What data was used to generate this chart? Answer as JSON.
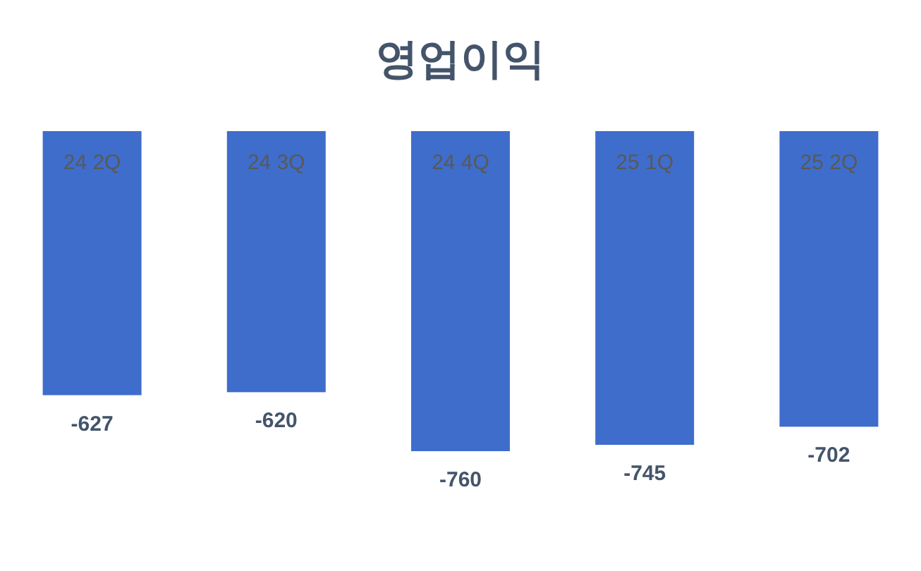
{
  "chart_data": {
    "type": "bar",
    "title": "영업이익",
    "categories": [
      "24 2Q",
      "24 3Q",
      "24 4Q",
      "25 1Q",
      "25 2Q"
    ],
    "values": [
      -627,
      -620,
      -760,
      -745,
      -702
    ],
    "color": "#3f6dcc",
    "data_labels": true
  }
}
